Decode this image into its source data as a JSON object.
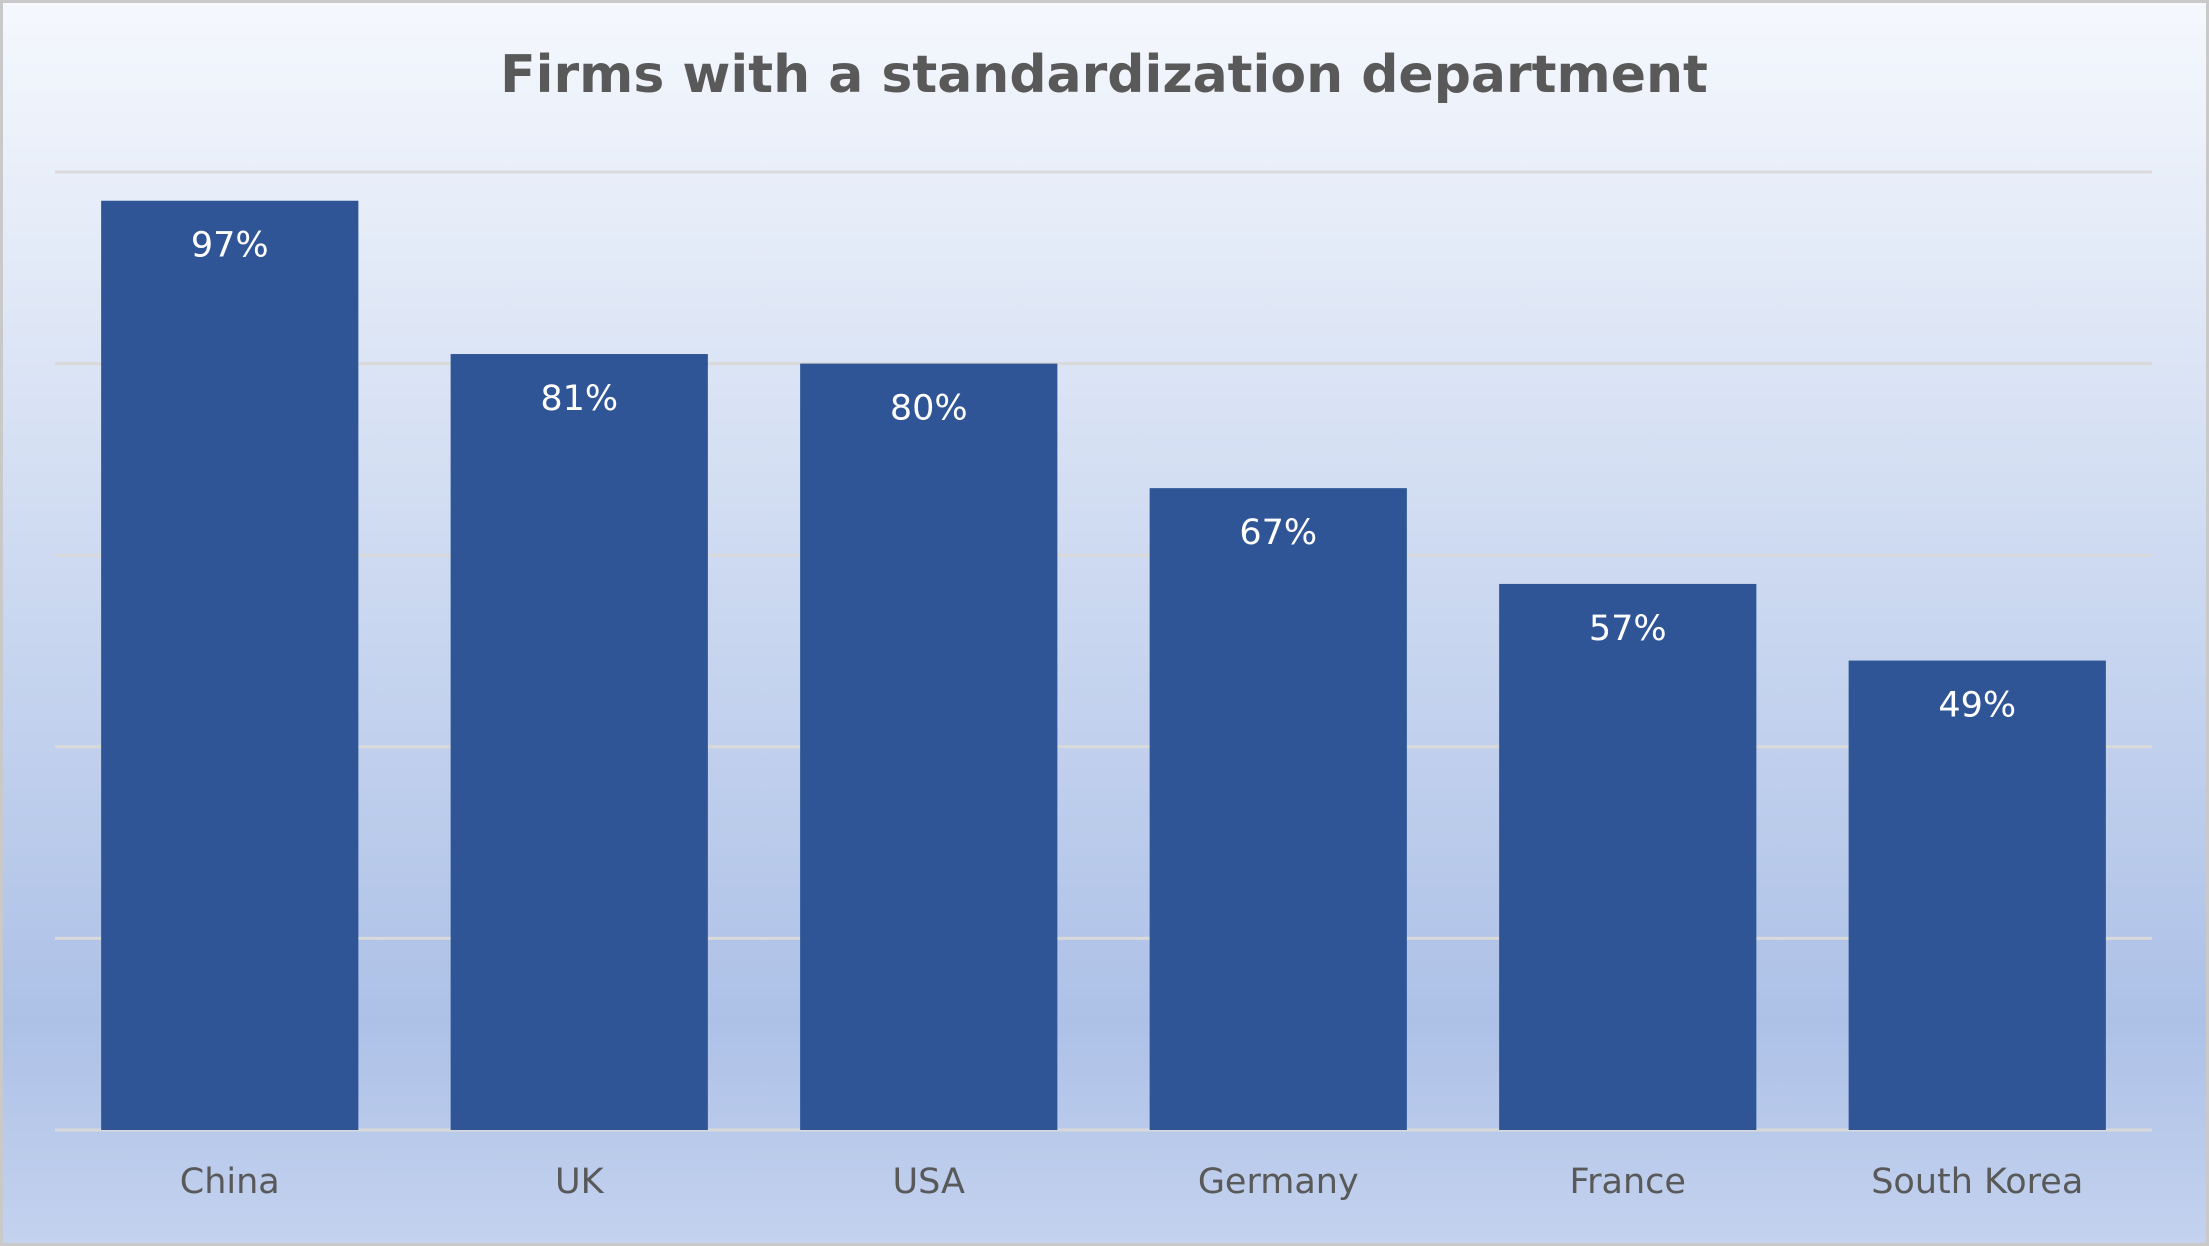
{
  "chart_data": {
    "type": "bar",
    "title": "Firms with a standardization department",
    "categories": [
      "China",
      "UK",
      "USA",
      "Germany",
      "France",
      "South Korea"
    ],
    "values": [
      97,
      81,
      80,
      67,
      57,
      49
    ],
    "value_labels": [
      "97%",
      "81%",
      "80%",
      "67%",
      "57%",
      "49%"
    ],
    "color": "#2f5597",
    "ylim": [
      0,
      100
    ],
    "yticks": [
      0,
      20,
      40,
      60,
      80,
      100
    ],
    "grid": true
  }
}
